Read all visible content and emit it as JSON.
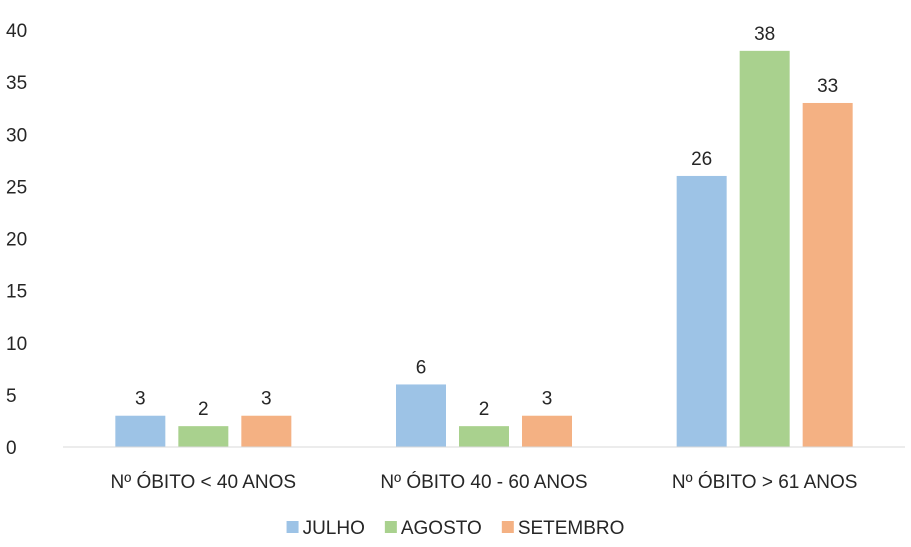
{
  "chart_data": {
    "type": "bar",
    "categories": [
      "Nº ÓBITO < 40 ANOS",
      "Nº ÓBITO 40 - 60 ANOS",
      "Nº ÓBITO > 61 ANOS"
    ],
    "series": [
      {
        "name": "JULHO",
        "values": [
          3,
          6,
          26
        ],
        "color": "#9dc3e6"
      },
      {
        "name": "AGOSTO",
        "values": [
          2,
          2,
          38
        ],
        "color": "#a9d18e"
      },
      {
        "name": "SETEMBRO",
        "values": [
          3,
          3,
          33
        ],
        "color": "#f4b183"
      }
    ],
    "ylim": [
      0,
      40
    ],
    "yticks": [
      0,
      5,
      10,
      15,
      20,
      25,
      30,
      35,
      40
    ],
    "grid": false,
    "legend_position": "bottom",
    "data_labels": true
  }
}
